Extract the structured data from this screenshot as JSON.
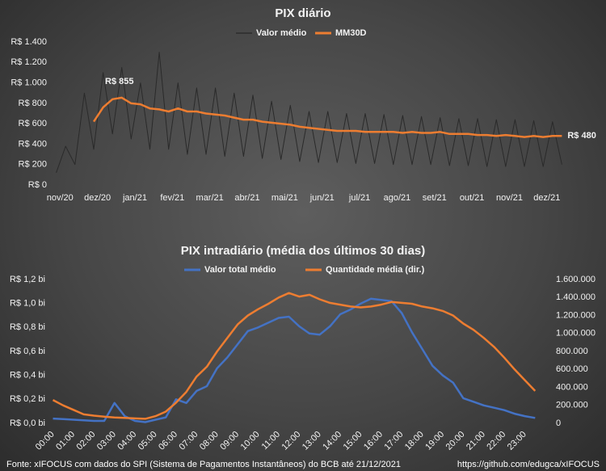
{
  "chart_data": [
    {
      "type": "line",
      "title": "PIX diário",
      "x": [
        -0.1,
        0.15,
        0.4,
        0.65,
        0.9,
        1.15,
        1.4,
        1.65,
        1.9,
        2.15,
        2.4,
        2.65,
        2.9,
        3.15,
        3.4,
        3.65,
        3.9,
        4.15,
        4.4,
        4.65,
        4.9,
        5.15,
        5.4,
        5.65,
        5.9,
        6.15,
        6.4,
        6.65,
        6.9,
        7.15,
        7.4,
        7.65,
        7.9,
        8.15,
        8.4,
        8.65,
        8.9,
        9.15,
        9.4,
        9.65,
        9.9,
        10.15,
        10.4,
        10.65,
        10.9,
        11.15,
        11.4,
        11.65,
        11.9,
        12.15,
        12.4,
        12.65,
        12.9,
        13.15,
        13.4
      ],
      "series": [
        {
          "name": "Valor médio",
          "color": "#2a2a2a",
          "values": [
            120,
            380,
            200,
            900,
            350,
            1100,
            500,
            1150,
            450,
            1000,
            350,
            1300,
            350,
            1000,
            300,
            950,
            300,
            950,
            280,
            900,
            280,
            880,
            260,
            820,
            250,
            780,
            230,
            720,
            220,
            720,
            220,
            700,
            210,
            700,
            210,
            690,
            200,
            680,
            200,
            670,
            200,
            660,
            190,
            650,
            190,
            650,
            180,
            640,
            180,
            640,
            180,
            630,
            180,
            620,
            200
          ]
        },
        {
          "name": "MM30D",
          "color": "#ed7d31",
          "values": [
            null,
            null,
            null,
            null,
            620,
            760,
            840,
            855,
            800,
            790,
            750,
            740,
            720,
            750,
            720,
            720,
            700,
            690,
            680,
            660,
            640,
            640,
            620,
            610,
            600,
            590,
            570,
            560,
            550,
            540,
            530,
            530,
            530,
            520,
            520,
            520,
            520,
            510,
            520,
            510,
            510,
            520,
            500,
            500,
            500,
            490,
            490,
            480,
            490,
            480,
            470,
            480,
            470,
            480,
            480
          ]
        }
      ],
      "annotations": [
        {
          "x": 1.65,
          "value": 855,
          "label": "R$ 855"
        },
        {
          "x": 13.4,
          "value": 480,
          "label": "R$ 480"
        }
      ],
      "xlim": [
        -0.2,
        13.5
      ],
      "xticks": [
        {
          "value": 0,
          "label": "nov/20"
        },
        {
          "value": 1,
          "label": "dez/20"
        },
        {
          "value": 2,
          "label": "jan/21"
        },
        {
          "value": 3,
          "label": "fev/21"
        },
        {
          "value": 4,
          "label": "mar/21"
        },
        {
          "value": 5,
          "label": "abr/21"
        },
        {
          "value": 6,
          "label": "mai/21"
        },
        {
          "value": 7,
          "label": "jun/21"
        },
        {
          "value": 8,
          "label": "jul/21"
        },
        {
          "value": 9,
          "label": "ago/21"
        },
        {
          "value": 10,
          "label": "set/21"
        },
        {
          "value": 11,
          "label": "out/21"
        },
        {
          "value": 12,
          "label": "nov/21"
        },
        {
          "value": 13,
          "label": "dez/21"
        }
      ],
      "ylim": [
        0,
        1400
      ],
      "yticks": [
        {
          "value": 0,
          "label": "R$ 0"
        },
        {
          "value": 200,
          "label": "R$ 200"
        },
        {
          "value": 400,
          "label": "R$ 400"
        },
        {
          "value": 600,
          "label": "R$ 600"
        },
        {
          "value": 800,
          "label": "R$ 800"
        },
        {
          "value": 1000,
          "label": "R$ 1.000"
        },
        {
          "value": 1200,
          "label": "R$ 1.200"
        },
        {
          "value": 1400,
          "label": "R$ 1.400"
        }
      ],
      "grid": false
    },
    {
      "type": "line",
      "title": "PIX intradiário (média dos últimos 30 dias)",
      "x": [
        0,
        0.5,
        1,
        1.5,
        2,
        2.5,
        3,
        3.5,
        4,
        4.5,
        5,
        5.5,
        6,
        6.5,
        7,
        7.5,
        8,
        8.5,
        9,
        9.5,
        10,
        10.5,
        11,
        11.5,
        12,
        12.5,
        13,
        13.5,
        14,
        14.5,
        15,
        15.5,
        16,
        16.5,
        17,
        17.5,
        18,
        18.5,
        19,
        19.5,
        20,
        20.5,
        21,
        21.5,
        22,
        22.5,
        23,
        23.5
      ],
      "series": [
        {
          "name": "Valor total médio",
          "color": "#4472c4",
          "values": [
            0.04,
            0.035,
            0.03,
            0.025,
            0.02,
            0.02,
            0.17,
            0.06,
            0.02,
            0.01,
            0.03,
            0.05,
            0.2,
            0.17,
            0.27,
            0.31,
            0.46,
            0.55,
            0.66,
            0.77,
            0.8,
            0.84,
            0.88,
            0.89,
            0.81,
            0.75,
            0.74,
            0.81,
            0.91,
            0.95,
            1.0,
            1.04,
            1.03,
            1.02,
            0.92,
            0.76,
            0.62,
            0.48,
            0.4,
            0.34,
            0.21,
            0.18,
            0.15,
            0.13,
            0.11,
            0.08,
            0.06,
            0.045
          ]
        },
        {
          "name": "Quantidade média (dir.)",
          "color": "#ed7d31",
          "axis": "y2",
          "values": [
            260000,
            200000,
            150000,
            100000,
            85000,
            75000,
            65000,
            60000,
            55000,
            50000,
            80000,
            130000,
            230000,
            350000,
            520000,
            630000,
            800000,
            950000,
            1100000,
            1200000,
            1270000,
            1330000,
            1400000,
            1450000,
            1410000,
            1430000,
            1380000,
            1340000,
            1320000,
            1300000,
            1290000,
            1300000,
            1320000,
            1350000,
            1340000,
            1330000,
            1300000,
            1280000,
            1250000,
            1200000,
            1110000,
            1040000,
            950000,
            850000,
            730000,
            600000,
            480000,
            360000
          ]
        }
      ],
      "xlim": [
        -0.1,
        24.0
      ],
      "xticks": [
        {
          "value": 0,
          "label": "00:00"
        },
        {
          "value": 1,
          "label": "01:00"
        },
        {
          "value": 2,
          "label": "02:00"
        },
        {
          "value": 3,
          "label": "03:00"
        },
        {
          "value": 4,
          "label": "04:00"
        },
        {
          "value": 5,
          "label": "05:00"
        },
        {
          "value": 6,
          "label": "06:00"
        },
        {
          "value": 7,
          "label": "07:00"
        },
        {
          "value": 8,
          "label": "08:00"
        },
        {
          "value": 9,
          "label": "09:00"
        },
        {
          "value": 10,
          "label": "10:00"
        },
        {
          "value": 11,
          "label": "11:00"
        },
        {
          "value": 12,
          "label": "12:00"
        },
        {
          "value": 13,
          "label": "13:00"
        },
        {
          "value": 14,
          "label": "14:00"
        },
        {
          "value": 15,
          "label": "15:00"
        },
        {
          "value": 16,
          "label": "16:00"
        },
        {
          "value": 17,
          "label": "17:00"
        },
        {
          "value": 18,
          "label": "18:00"
        },
        {
          "value": 19,
          "label": "19:00"
        },
        {
          "value": 20,
          "label": "20:00"
        },
        {
          "value": 21,
          "label": "21:00"
        },
        {
          "value": 22,
          "label": "22:00"
        },
        {
          "value": 23,
          "label": "23:00"
        }
      ],
      "xtick_rotation": -45,
      "ylim": [
        0,
        1.2
      ],
      "yticks": [
        {
          "value": 0,
          "label": "R$ 0,0 bi"
        },
        {
          "value": 0.2,
          "label": "R$ 0,2 bi"
        },
        {
          "value": 0.4,
          "label": "R$ 0,4 bi"
        },
        {
          "value": 0.6,
          "label": "R$ 0,6 bi"
        },
        {
          "value": 0.8,
          "label": "R$ 0,8 bi"
        },
        {
          "value": 1.0,
          "label": "R$ 1,0 bi"
        },
        {
          "value": 1.2,
          "label": "R$ 1,2 bi"
        }
      ],
      "y2lim": [
        0,
        1600000
      ],
      "y2ticks": [
        0,
        {
          "value": 200000,
          "label": "200.000"
        },
        {
          "value": 400000,
          "label": "400.000"
        },
        {
          "value": 600000,
          "label": "600.000"
        },
        {
          "value": 800000,
          "label": "800.000"
        },
        {
          "value": 1000000,
          "label": "1.000.000"
        },
        {
          "value": 1200000,
          "label": "1.200.000"
        },
        {
          "value": 1400000,
          "label": "1.400.000"
        },
        {
          "value": 1600000,
          "label": "1.600.000"
        }
      ],
      "grid": false
    }
  ],
  "footer": {
    "source": "Fonte: xIFOCUS com dados do SPI (Sistema de Pagamentos Instantâneos) do BCB até 21/12/2021",
    "url": "https://github.com/edugca/xIFOCUS"
  }
}
